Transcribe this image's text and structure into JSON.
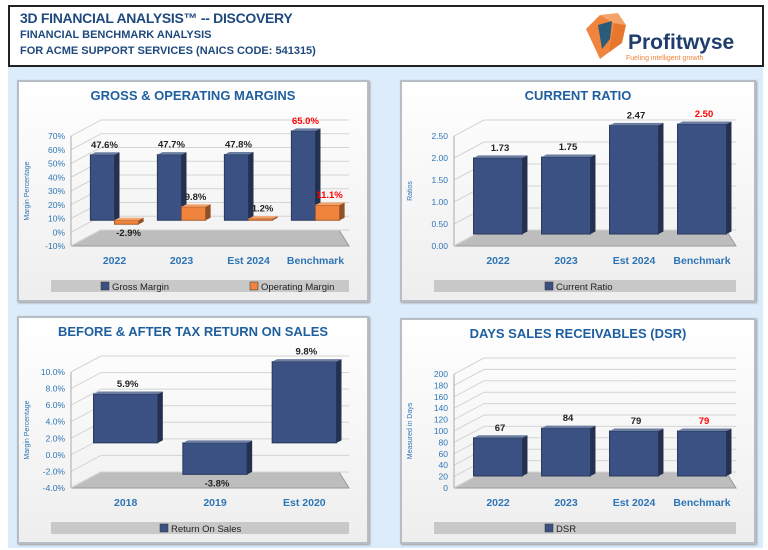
{
  "header": {
    "title": "3D FINANCIAL ANALYSIS™ -- DISCOVERY",
    "subtitle": "FINANCIAL BENCHMARK ANALYSIS",
    "company": "FOR ACME SUPPORT SERVICES (NAICS CODE: 541315)",
    "logo_text": "Profitwyse",
    "logo_tagline": "Fueling intelligent growth"
  },
  "colors": {
    "title": "#1f5f9f",
    "axis_text": "#2e75b6",
    "gross": "#3b5183",
    "operating": "#f0843c",
    "highlight": "#ff0000",
    "legend_bar": "#c8c8c8"
  },
  "chart_data": [
    {
      "type": "bar",
      "title": "GROSS & OPERATING MARGINS",
      "ylabel": "Margin Percentage",
      "ylim": [
        -10,
        70
      ],
      "yticks": [
        -10,
        0,
        10,
        20,
        30,
        40,
        50,
        60,
        70
      ],
      "tick_format": "pct0",
      "categories": [
        "2022",
        "2023",
        "Est 2024",
        "Benchmark"
      ],
      "highlight_category": "Benchmark",
      "series": [
        {
          "name": "Gross Margin",
          "values": [
            47.6,
            47.7,
            47.8,
            65.0
          ],
          "labels": [
            "47.6%",
            "47.7%",
            "47.8%",
            "65.0%"
          ],
          "color": "#3b5183"
        },
        {
          "name": "Operating Margin",
          "values": [
            -2.9,
            9.8,
            1.2,
            11.1
          ],
          "labels": [
            "-2.9%",
            "9.8%",
            "1.2%",
            "11.1%"
          ],
          "color": "#f0843c"
        }
      ],
      "grid": true,
      "legend": "bottom"
    },
    {
      "type": "bar",
      "title": "CURRENT RATIO",
      "ylabel": "Ratios",
      "ylim": [
        0,
        2.5
      ],
      "yticks": [
        0,
        0.5,
        1,
        1.5,
        2,
        2.5
      ],
      "tick_format": "fix2",
      "categories": [
        "2022",
        "2023",
        "Est 2024",
        "Benchmark"
      ],
      "highlight_category": "Benchmark",
      "series": [
        {
          "name": "Current Ratio",
          "values": [
            1.73,
            1.75,
            2.47,
            2.5
          ],
          "labels": [
            "1.73",
            "1.75",
            "2.47",
            "2.50"
          ],
          "color": "#3b5183"
        }
      ],
      "grid": true,
      "legend": "bottom"
    },
    {
      "type": "bar",
      "title": "BEFORE & AFTER TAX RETURN ON SALES",
      "ylabel": "Margin Percentage",
      "ylim": [
        -4,
        10
      ],
      "yticks": [
        -4,
        -2,
        0,
        2,
        4,
        6,
        8,
        10
      ],
      "tick_format": "pct1",
      "categories": [
        "2018",
        "2019",
        "Est 2020"
      ],
      "highlight_category": "",
      "series": [
        {
          "name": "Return On Sales",
          "values": [
            5.9,
            -3.8,
            9.8
          ],
          "labels": [
            "5.9%",
            "-3.8%",
            "9.8%"
          ],
          "color": "#3b5183"
        }
      ],
      "grid": true,
      "legend": "bottom"
    },
    {
      "type": "bar",
      "title": "DAYS SALES RECEIVABLES  (DSR)",
      "ylabel": "Measured in Days",
      "ylim": [
        0,
        200
      ],
      "yticks": [
        0,
        20,
        40,
        60,
        80,
        100,
        120,
        140,
        160,
        180,
        200
      ],
      "tick_format": "int",
      "categories": [
        "2022",
        "2023",
        "Est 2024",
        "Benchmark"
      ],
      "highlight_category": "Benchmark",
      "series": [
        {
          "name": "DSR",
          "values": [
            67,
            84,
            79,
            79
          ],
          "labels": [
            "67",
            "84",
            "79",
            "79"
          ],
          "color": "#3b5183"
        }
      ],
      "grid": true,
      "legend": "bottom"
    }
  ]
}
